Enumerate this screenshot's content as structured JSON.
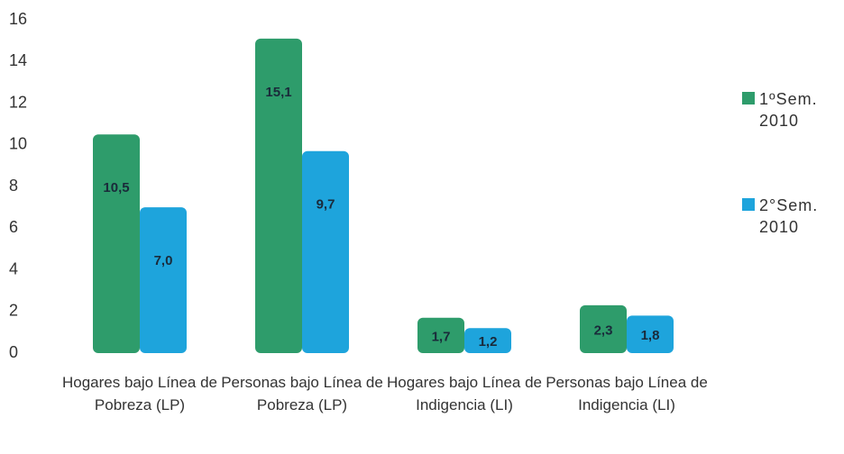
{
  "chart_data": {
    "type": "bar",
    "categories": [
      "Hogares bajo Línea de Pobreza (LP)",
      "Personas bajo Línea de Pobreza (LP)",
      "Hogares bajo Línea de Indigencia (LI)",
      "Personas bajo Línea de Indigencia (LI)"
    ],
    "series": [
      {
        "name": "1ºSem. 2010",
        "color": "#2e9c6b",
        "values": [
          10.5,
          15.1,
          1.7,
          2.3
        ],
        "value_labels": [
          "10,5",
          "15,1",
          "1,7",
          "2,3"
        ]
      },
      {
        "name": "2°Sem. 2010",
        "color": "#1ea4dc",
        "values": [
          7.0,
          9.7,
          1.2,
          1.8
        ],
        "value_labels": [
          "7,0",
          "9,7",
          "1,2",
          "1,8"
        ]
      }
    ],
    "ylim": [
      0,
      16
    ],
    "yticks": [
      0,
      2,
      4,
      6,
      8,
      10,
      12,
      14,
      16
    ],
    "legend": "right"
  }
}
